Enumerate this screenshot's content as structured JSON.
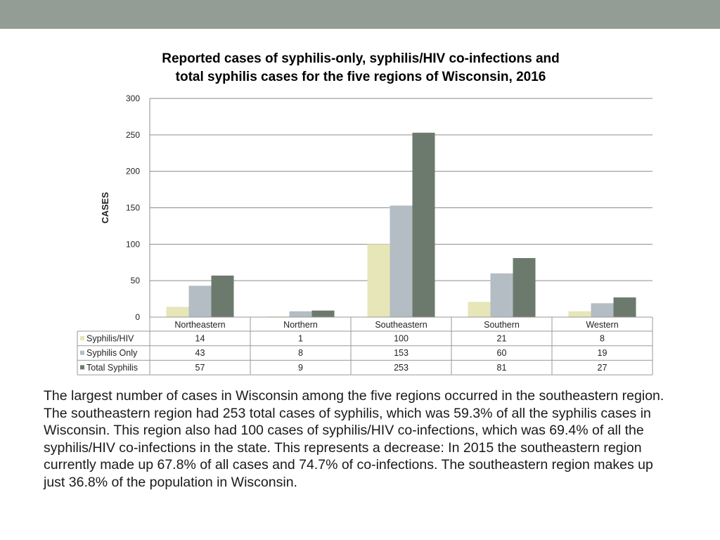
{
  "colors": {
    "header_band": "#939d95",
    "gridline": "#8c8c8c",
    "table_border": "#9a9a9a",
    "series": [
      "#e6e6b8",
      "#b4bcc4",
      "#6b7a6d"
    ]
  },
  "chart_data": {
    "type": "bar",
    "title_lines": [
      "Reported cases of syphilis-only, syphilis/HIV co-infections and",
      "total syphilis cases for the five regions of Wisconsin, 2016"
    ],
    "ylabel": "CASES",
    "xlabel": "",
    "ylim": [
      0,
      300
    ],
    "yticks": [
      0,
      50,
      100,
      150,
      200,
      250,
      300
    ],
    "grid": true,
    "legend": "data-table",
    "categories": [
      "Northeastern",
      "Northern",
      "Southeastern",
      "Southern",
      "Western"
    ],
    "series": [
      {
        "name": "Syphilis/HIV",
        "values": [
          14,
          1,
          100,
          21,
          8
        ]
      },
      {
        "name": "Syphilis Only",
        "values": [
          43,
          8,
          153,
          60,
          19
        ]
      },
      {
        "name": "Total Syphilis",
        "values": [
          57,
          9,
          253,
          81,
          27
        ]
      }
    ]
  },
  "body_text": "The largest number of cases in Wisconsin among the five regions occurred in the southeastern region. The southeastern region had 253 total cases of syphilis, which was 59.3% of all the syphilis cases in Wisconsin. This region also had 100 cases of syphilis/HIV co-infections, which was 69.4% of all the syphilis/HIV co-infections in the state. This represents a decrease: In 2015 the southeastern region currently made up 67.8% of all cases and 74.7% of co-infections. The southeastern region makes up just 36.8% of the population in Wisconsin."
}
